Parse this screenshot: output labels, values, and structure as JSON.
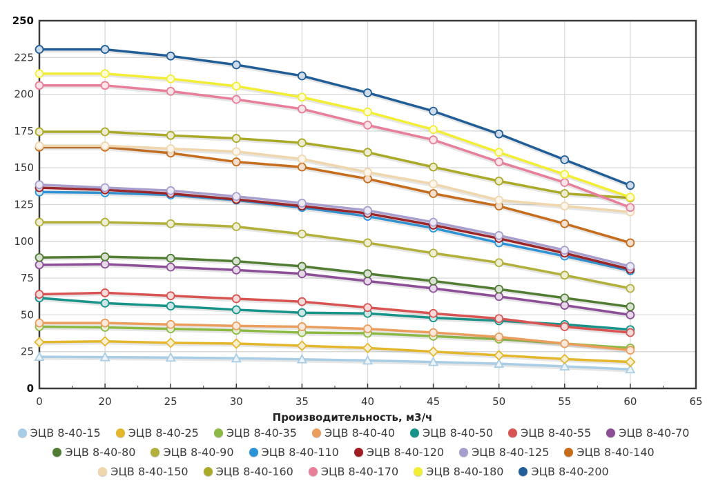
{
  "chart_data": {
    "type": "line",
    "title": "",
    "xlabel": "Производительность, м3/ч",
    "ylabel": "",
    "ylim": [
      0,
      250
    ],
    "y_ticks": [
      0,
      25,
      50,
      75,
      100,
      125,
      150,
      175,
      200,
      225,
      250
    ],
    "x_ticks": [
      "0",
      "20",
      "25",
      "30",
      "35",
      "40",
      "45",
      "50",
      "55",
      "60",
      "65"
    ],
    "categories": [
      "0",
      "20",
      "25",
      "30",
      "35",
      "40",
      "45",
      "50",
      "55",
      "60"
    ],
    "grid": true,
    "legend_position": "bottom",
    "series": [
      {
        "name": "ЭЦВ 8-40-15",
        "color": "#a9cde4",
        "marker": "triangle",
        "values": [
          21.5,
          21.3,
          21,
          20.5,
          19.8,
          19,
          18,
          16.8,
          15,
          13
        ]
      },
      {
        "name": "ЭЦВ 8-40-25",
        "color": "#e3b62c",
        "marker": "diamond",
        "values": [
          31.5,
          32,
          31,
          30.5,
          29,
          27.5,
          25,
          22.5,
          20,
          18
        ]
      },
      {
        "name": "ЭЦВ 8-40-35",
        "color": "#8cb944",
        "marker": "circle",
        "values": [
          42,
          41.5,
          40.5,
          39.5,
          38,
          37.5,
          35.5,
          33.5,
          30.5,
          27.5
        ]
      },
      {
        "name": "ЭЦВ 8-40-40",
        "color": "#ea9d5c",
        "marker": "circle",
        "values": [
          44.5,
          44.5,
          43.5,
          42.5,
          42,
          40.5,
          38,
          35,
          30.5,
          26
        ]
      },
      {
        "name": "ЭЦВ 8-40-50",
        "color": "#18938a",
        "marker": "circle",
        "values": [
          61.5,
          58,
          56,
          53.5,
          51.5,
          51,
          48,
          46,
          43.5,
          40
        ]
      },
      {
        "name": "ЭЦВ 8-40-55",
        "color": "#d85452",
        "marker": "circle",
        "values": [
          64,
          65,
          63,
          61,
          59,
          55,
          51,
          47.5,
          42,
          38
        ]
      },
      {
        "name": "ЭЦВ 8-40-70",
        "color": "#8c4e97",
        "marker": "circle",
        "values": [
          84,
          84.5,
          82.5,
          80.5,
          78,
          73,
          68,
          62.5,
          56.5,
          50
        ]
      },
      {
        "name": "ЭЦВ 8-40-80",
        "color": "#507d32",
        "marker": "circle",
        "values": [
          89,
          89.5,
          88.5,
          86.5,
          83,
          78,
          73,
          67.5,
          61.5,
          55.5
        ]
      },
      {
        "name": "ЭЦВ 8-40-90",
        "color": "#b2b03a",
        "marker": "circle",
        "values": [
          113,
          113,
          112,
          110,
          105,
          99,
          92,
          85.5,
          77,
          68
        ]
      },
      {
        "name": "ЭЦВ 8-40-110",
        "color": "#2b94d8",
        "marker": "circle",
        "values": [
          133.5,
          133,
          131.5,
          128,
          123,
          117,
          109,
          99,
          90,
          80
        ]
      },
      {
        "name": "ЭЦВ 8-40-120",
        "color": "#a01d22",
        "marker": "circle",
        "values": [
          136.5,
          135,
          132.5,
          128.5,
          124,
          119,
          111,
          102,
          92,
          81
        ]
      },
      {
        "name": "ЭЦВ 8-40-125",
        "color": "#a79ecd",
        "marker": "circle",
        "values": [
          138.5,
          136.5,
          134.5,
          130.5,
          126,
          121,
          113,
          104,
          94,
          83
        ]
      },
      {
        "name": "ЭЦВ 8-40-140",
        "color": "#c66d1d",
        "marker": "circle",
        "values": [
          164,
          164,
          160,
          154,
          150.5,
          142.5,
          132.5,
          124,
          112,
          99
        ]
      },
      {
        "name": "ЭЦВ 8-40-150",
        "color": "#f0d6ad",
        "marker": "circle",
        "values": [
          165,
          165,
          163,
          161,
          156,
          147,
          139,
          128,
          124,
          120
        ]
      },
      {
        "name": "ЭЦВ 8-40-160",
        "color": "#aba928",
        "marker": "circle",
        "values": [
          174.5,
          174.5,
          172,
          170,
          167,
          160.5,
          150.5,
          141,
          132.5,
          129.5
        ]
      },
      {
        "name": "ЭЦВ 8-40-170",
        "color": "#e87f9a",
        "marker": "circle",
        "values": [
          206,
          206,
          202,
          196.5,
          190,
          179,
          169,
          154,
          140,
          123
        ]
      },
      {
        "name": "ЭЦВ 8-40-180",
        "color": "#f2ee35",
        "marker": "circle",
        "values": [
          214,
          214,
          210.5,
          205.5,
          198,
          188,
          176,
          160.5,
          145.5,
          130
        ]
      },
      {
        "name": "ЭЦВ 8-40-200",
        "color": "#215d96",
        "marker": "circle",
        "values": [
          230.5,
          230.5,
          226,
          220,
          212.5,
          201,
          188.5,
          173,
          155.5,
          138
        ]
      }
    ],
    "axis_color": "#3a3a3a",
    "grid_color": "#d7d7d7"
  }
}
